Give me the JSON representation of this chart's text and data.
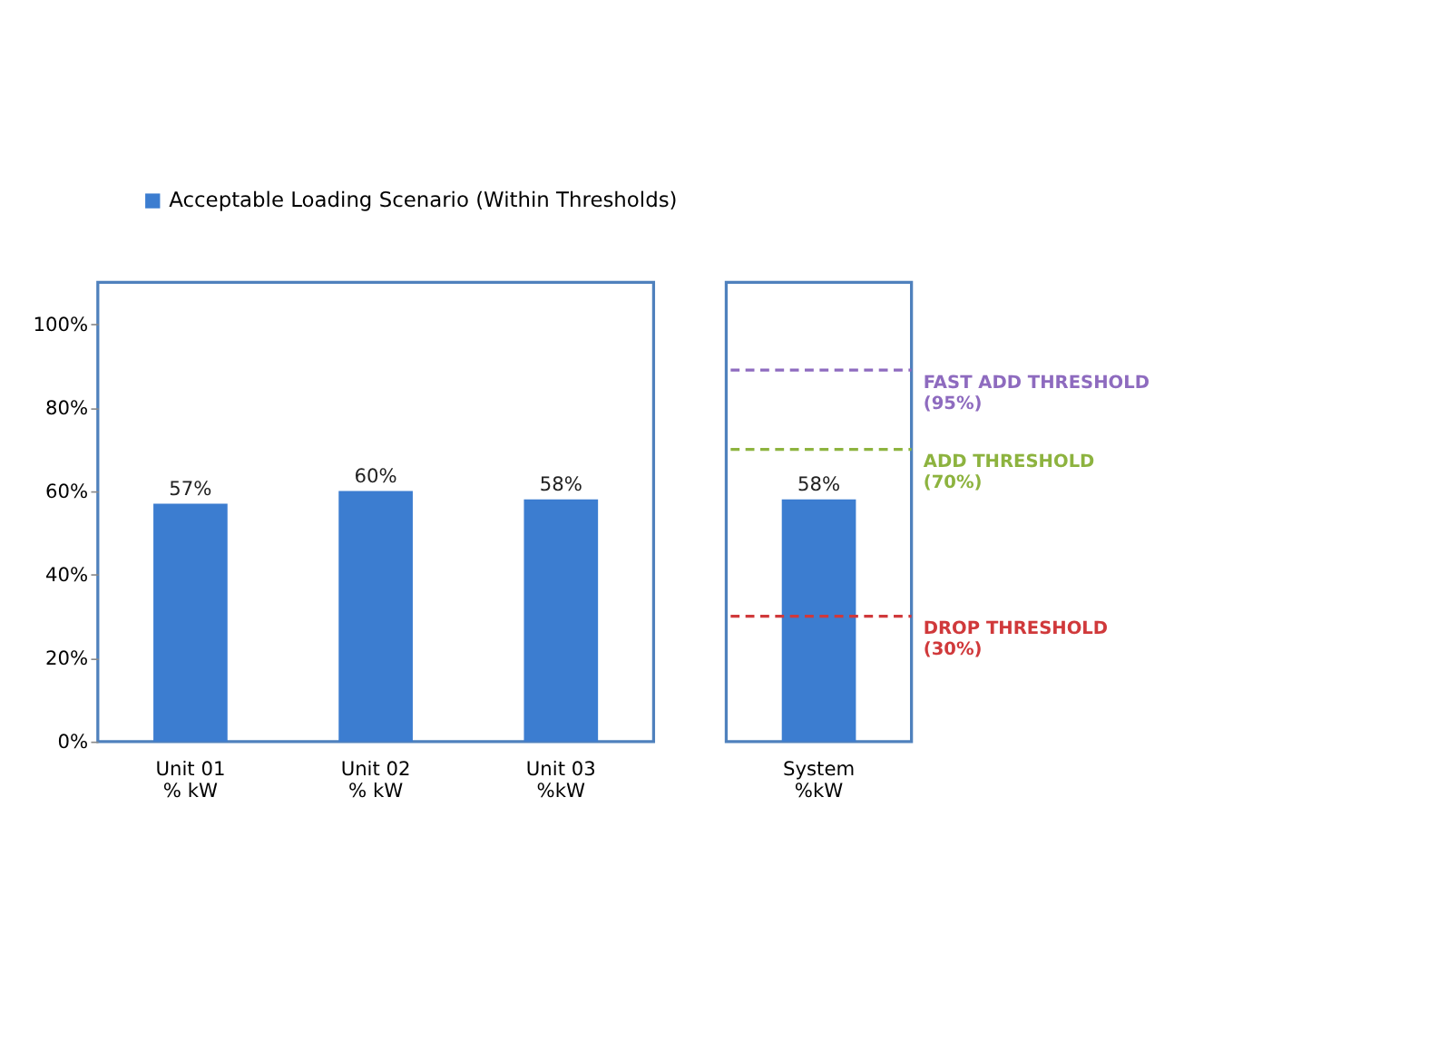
{
  "chart_data": [
    {
      "type": "bar",
      "categories": [
        "Unit 01\n% kW",
        "Unit 02\n% kW",
        "Unit 03\n%kW"
      ],
      "series": [
        {
          "name": "Acceptable Loading Scenario (Within Thresholds)",
          "color": "#3c7dd0",
          "values": [
            57,
            60,
            58
          ]
        }
      ],
      "value_labels": [
        "57%",
        "60%",
        "58%"
      ],
      "ylim": [
        0,
        110
      ],
      "yticks": [
        {
          "value": 0,
          "label": "0%"
        },
        {
          "value": 20,
          "label": "20%"
        },
        {
          "value": 40,
          "label": "40%"
        },
        {
          "value": 60,
          "label": "60%"
        },
        {
          "value": 80,
          "label": "80%"
        },
        {
          "value": 100,
          "label": "100%"
        }
      ],
      "grid": false,
      "legend": "top"
    },
    {
      "type": "bar",
      "categories": [
        "System\n%kW"
      ],
      "series": [
        {
          "color": "#3c7dd0",
          "values": [
            58
          ]
        }
      ],
      "value_labels": [
        "58%"
      ],
      "ylim": [
        0,
        110
      ],
      "tick_labels": "x",
      "ref_lines": [
        {
          "axis": "y",
          "value": 89,
          "label": "FAST ADD THRESHOLD\n(95%)",
          "color": "#8e6bbf",
          "line_style": "dashed"
        },
        {
          "axis": "y",
          "value": 70,
          "label": "ADD THRESHOLD\n(70%)",
          "color": "#8db33f",
          "line_style": "dashed"
        },
        {
          "axis": "y",
          "value": 30,
          "label": "DROP THRESHOLD\n(30%)",
          "color": "#d0393b",
          "line_style": "dashed"
        }
      ],
      "grid": false
    }
  ]
}
